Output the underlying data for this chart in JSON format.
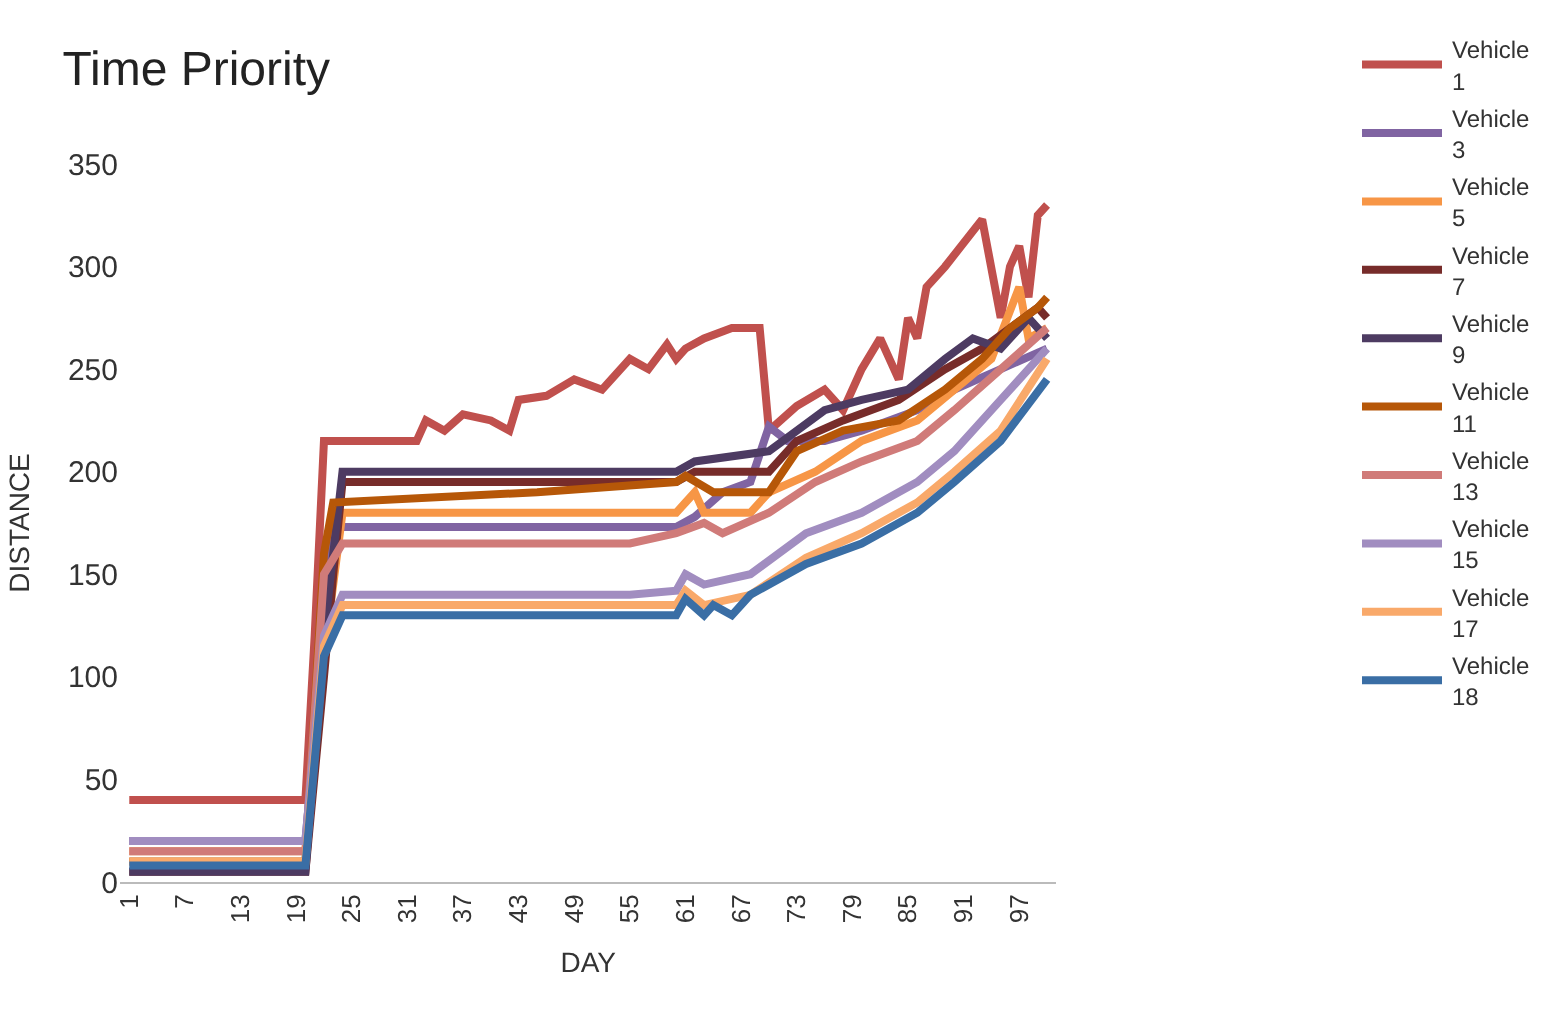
{
  "chart_data": {
    "type": "line",
    "title": "Time Priority",
    "xlabel": "DAY",
    "ylabel": "DISTANCE",
    "xlim": [
      0,
      101
    ],
    "xticks": [
      1,
      7,
      13,
      19,
      25,
      31,
      37,
      43,
      49,
      55,
      61,
      67,
      73,
      79,
      85,
      91,
      97
    ],
    "ylim": [
      0,
      350
    ],
    "yticks": [
      0,
      50,
      100,
      150,
      200,
      250,
      300,
      350
    ],
    "legend": "right",
    "marker": "none",
    "line_style": "solid",
    "series": [
      {
        "name": "Vehicle 1",
        "color": "#c0504d",
        "x": [
          1,
          20,
          21,
          22,
          32,
          33,
          35,
          37,
          40,
          42,
          43,
          46,
          49,
          52,
          55,
          57,
          59,
          60,
          61,
          63,
          66,
          69,
          70,
          73,
          76,
          78,
          80,
          82,
          84,
          85,
          86,
          87,
          89,
          93,
          95,
          96,
          97,
          98,
          99,
          100
        ],
        "values": [
          40,
          40,
          120,
          215,
          215,
          225,
          220,
          228,
          225,
          220,
          235,
          237,
          245,
          240,
          255,
          250,
          262,
          255,
          260,
          265,
          270,
          270,
          220,
          232,
          240,
          230,
          250,
          265,
          245,
          275,
          265,
          290,
          300,
          323,
          275,
          300,
          310,
          285,
          325,
          330
        ]
      },
      {
        "name": "Vehicle 3",
        "color": "#8064a2",
        "x": [
          1,
          20,
          22,
          23,
          60,
          62,
          65,
          68,
          70,
          72,
          76,
          80,
          86,
          90,
          95,
          100
        ],
        "values": [
          20,
          20,
          120,
          173,
          173,
          178,
          190,
          195,
          222,
          215,
          215,
          220,
          230,
          240,
          250,
          260
        ]
      },
      {
        "name": "Vehicle 5",
        "color": "#f79646",
        "x": [
          1,
          20,
          22,
          24,
          60,
          61,
          62,
          63,
          68,
          70,
          75,
          80,
          86,
          90,
          94,
          97,
          98,
          100
        ],
        "values": [
          15,
          15,
          110,
          180,
          180,
          185,
          190,
          180,
          180,
          190,
          200,
          215,
          225,
          240,
          255,
          290,
          265,
          270
        ]
      },
      {
        "name": "Vehicle 7",
        "color": "#772c2a",
        "x": [
          1,
          20,
          22,
          23,
          24,
          60,
          62,
          70,
          73,
          78,
          84,
          89,
          93,
          96,
          99,
          100
        ],
        "values": [
          5,
          5,
          100,
          150,
          195,
          195,
          200,
          200,
          215,
          225,
          235,
          250,
          260,
          270,
          280,
          275
        ]
      },
      {
        "name": "Vehicle 9",
        "color": "#4d3b62",
        "x": [
          1,
          20,
          22,
          24,
          60,
          62,
          70,
          73,
          76,
          80,
          85,
          89,
          92,
          95,
          98,
          100
        ],
        "values": [
          5,
          5,
          120,
          200,
          200,
          205,
          210,
          220,
          230,
          235,
          240,
          255,
          265,
          260,
          275,
          265
        ]
      },
      {
        "name": "Vehicle 11",
        "color": "#b65708",
        "x": [
          1,
          20,
          22,
          23,
          45,
          60,
          61,
          64,
          70,
          73,
          78,
          84,
          89,
          93,
          96,
          99,
          100
        ],
        "values": [
          10,
          10,
          160,
          185,
          190,
          195,
          198,
          190,
          190,
          210,
          220,
          225,
          240,
          255,
          270,
          280,
          285
        ]
      },
      {
        "name": "Vehicle 13",
        "color": "#d07b79",
        "x": [
          1,
          20,
          22,
          24,
          55,
          60,
          63,
          65,
          70,
          75,
          80,
          86,
          90,
          95,
          100
        ],
        "values": [
          15,
          15,
          150,
          165,
          165,
          170,
          175,
          170,
          180,
          195,
          205,
          215,
          230,
          250,
          270
        ]
      },
      {
        "name": "Vehicle 15",
        "color": "#a18dc0",
        "x": [
          1,
          20,
          22,
          24,
          55,
          60,
          61,
          63,
          68,
          74,
          80,
          86,
          90,
          95,
          100
        ],
        "values": [
          20,
          20,
          120,
          140,
          140,
          142,
          150,
          145,
          150,
          170,
          180,
          195,
          210,
          235,
          260
        ]
      },
      {
        "name": "Vehicle 17",
        "color": "#f9a96a",
        "x": [
          1,
          20,
          22,
          24,
          60,
          61,
          63,
          68,
          74,
          80,
          86,
          90,
          95,
          100
        ],
        "values": [
          10,
          10,
          115,
          135,
          135,
          142,
          135,
          140,
          158,
          170,
          185,
          200,
          220,
          255
        ]
      },
      {
        "name": "Vehicle 18",
        "color": "#3a6ea5",
        "x": [
          1,
          20,
          22,
          24,
          60,
          61,
          63,
          64,
          66,
          68,
          74,
          80,
          86,
          90,
          95,
          100
        ],
        "values": [
          8,
          8,
          110,
          130,
          130,
          138,
          130,
          135,
          130,
          140,
          155,
          165,
          180,
          195,
          215,
          245
        ]
      }
    ]
  }
}
